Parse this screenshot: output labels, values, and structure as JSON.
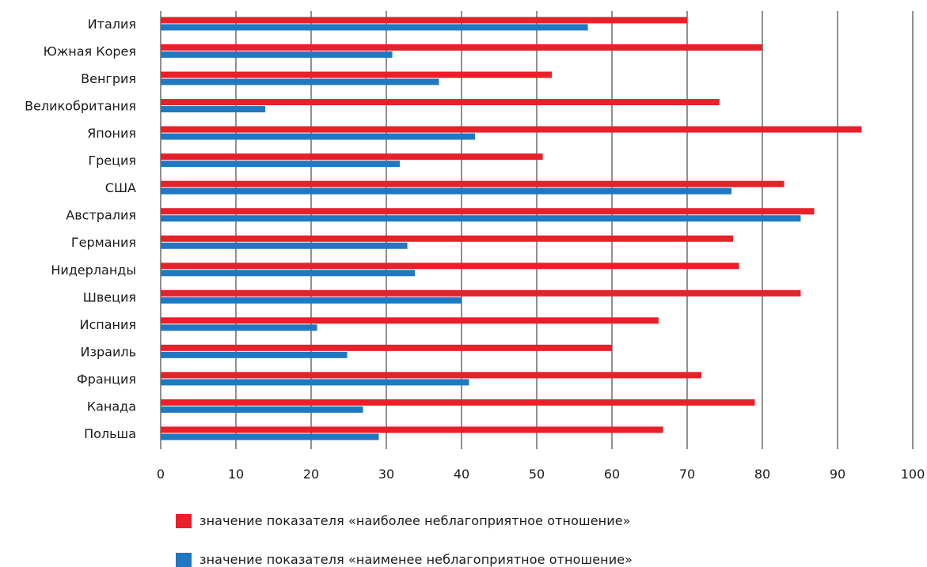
{
  "chart_data": {
    "type": "bar",
    "orientation": "horizontal",
    "categories": [
      "Италия",
      "Южная Корея",
      "Венгрия",
      "Великобритания",
      "Япония",
      "Греция",
      "США",
      "Австралия",
      "Германия",
      "Нидерланды",
      "Швеция",
      "Испания",
      "Израиль",
      "Франция",
      "Канада",
      "Польша"
    ],
    "series": [
      {
        "name": "значение показателя «наиболее неблагоприятное отношение»",
        "color": "#e8202a",
        "values": [
          70,
          80,
          52,
          74.3,
          93.2,
          50.8,
          82.9,
          86.9,
          76.1,
          76.9,
          85.1,
          66.2,
          60,
          71.9,
          79,
          66.8
        ]
      },
      {
        "name": "значение показателя «наименее неблагоприятное отношение»",
        "color": "#1f78c1",
        "values": [
          56.8,
          30.8,
          37,
          13.9,
          41.8,
          31.8,
          75.9,
          85.1,
          32.8,
          33.8,
          40,
          20.8,
          24.8,
          41,
          26.9,
          29
        ]
      }
    ],
    "xlim": [
      0,
      100
    ],
    "xticks": [
      0,
      10,
      20,
      30,
      40,
      50,
      60,
      70,
      80,
      90,
      100
    ],
    "grid": "vertical",
    "legend_position": "bottom"
  }
}
